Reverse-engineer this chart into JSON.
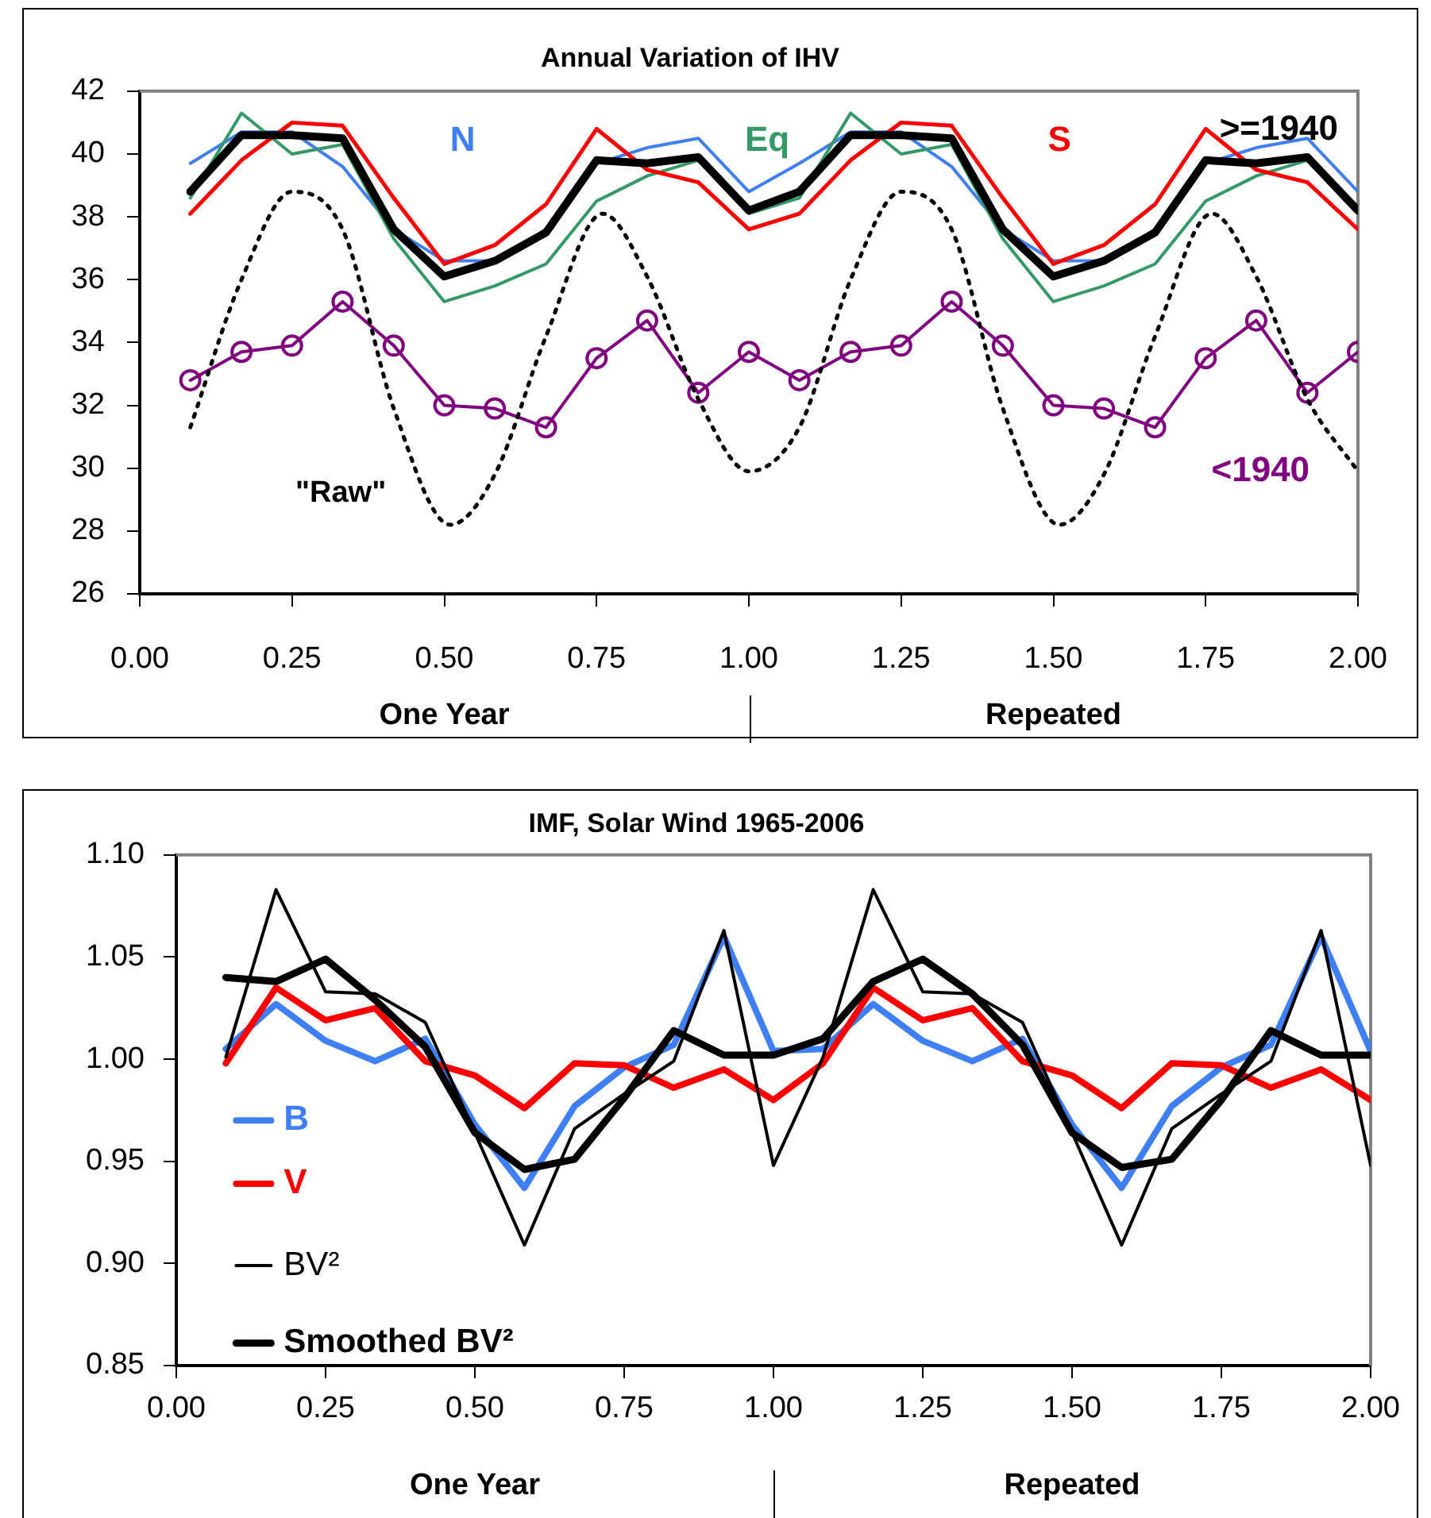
{
  "chart_data": [
    {
      "type": "line",
      "title": "Annual Variation of IHV",
      "legend": false,
      "x": [
        0.083,
        0.167,
        0.25,
        0.333,
        0.417,
        0.5,
        0.583,
        0.667,
        0.75,
        0.833,
        0.917,
        1.0,
        1.083,
        1.167,
        1.25,
        1.333,
        1.417,
        1.5,
        1.583,
        1.667,
        1.75,
        1.833,
        1.917,
        2.0
      ],
      "xlim": [
        0,
        2.0
      ],
      "xticks": [
        {
          "value": 0,
          "label": "0.00"
        },
        {
          "value": 0.25,
          "label": "0.25"
        },
        {
          "value": 0.5,
          "label": "0.50"
        },
        {
          "value": 0.75,
          "label": "0.75"
        },
        {
          "value": 1,
          "label": "1.00"
        },
        {
          "value": 1.25,
          "label": "1.25"
        },
        {
          "value": 1.5,
          "label": "1.50"
        },
        {
          "value": 1.75,
          "label": "1.75"
        },
        {
          "value": 2,
          "label": "2.00"
        }
      ],
      "ylim": [
        26,
        42
      ],
      "yticks": [
        26,
        28,
        30,
        32,
        34,
        36,
        38,
        40,
        42
      ],
      "annotations": [
        "One Year",
        "Repeated"
      ],
      "series": [
        {
          "name": "N",
          "color": "#3f7ff5",
          "values": [
            39.7,
            40.7,
            40.7,
            39.6,
            37.6,
            36.6,
            36.6,
            37.6,
            39.7,
            40.2,
            40.5,
            38.8,
            39.7,
            40.7,
            40.7,
            39.6,
            37.6,
            36.6,
            36.6,
            37.6,
            39.7,
            40.2,
            40.5,
            38.8
          ]
        },
        {
          "name": "Eq",
          "color": "#339966",
          "values": [
            38.6,
            41.3,
            40.0,
            40.3,
            37.3,
            35.3,
            35.8,
            36.5,
            38.5,
            39.3,
            39.8,
            38.1,
            38.6,
            41.3,
            40.0,
            40.3,
            37.3,
            35.3,
            35.8,
            36.5,
            38.5,
            39.3,
            39.8,
            38.1
          ]
        },
        {
          "name": "S",
          "color": "#ff0000",
          "values": [
            38.1,
            39.8,
            41.0,
            40.9,
            38.6,
            36.5,
            37.1,
            38.4,
            40.8,
            39.5,
            39.1,
            37.6,
            38.1,
            39.8,
            41.0,
            40.9,
            38.6,
            36.5,
            37.1,
            38.4,
            40.8,
            39.5,
            39.1,
            37.6
          ]
        },
        {
          "name": ">=1940",
          "color": "#000000",
          "values": [
            38.8,
            40.6,
            40.6,
            40.5,
            37.6,
            36.1,
            36.6,
            37.5,
            39.8,
            39.7,
            39.9,
            38.2,
            38.8,
            40.6,
            40.6,
            40.5,
            37.6,
            36.1,
            36.6,
            37.5,
            39.8,
            39.7,
            39.9,
            38.2
          ]
        },
        {
          "name": "<1940",
          "color": "#800080",
          "marker": "circle",
          "values": [
            32.8,
            33.7,
            33.9,
            35.3,
            33.9,
            32.0,
            31.9,
            31.3,
            33.5,
            34.7,
            32.4,
            33.7,
            32.8,
            33.7,
            33.9,
            35.3,
            33.9,
            32.0,
            31.9,
            31.3,
            33.5,
            34.7,
            32.4,
            33.7
          ]
        },
        {
          "name": "\"Raw\"",
          "color": "#000000",
          "line_style": "dotted",
          "x": [
            0.083,
            0.167,
            0.25,
            0.333,
            0.417,
            0.51,
            0.583,
            0.667,
            0.76,
            0.833,
            0.917,
            1.0,
            1.083,
            1.167,
            1.25,
            1.333,
            1.417,
            1.51,
            1.583,
            1.667,
            1.76,
            1.833,
            1.917,
            2.0
          ],
          "values": [
            31.3,
            36.0,
            38.8,
            37.6,
            31.9,
            28.2,
            29.8,
            34.2,
            38.1,
            36.1,
            32.2,
            29.9,
            31.3,
            36.0,
            38.8,
            37.6,
            31.9,
            28.2,
            29.8,
            34.2,
            38.1,
            36.1,
            32.2,
            29.9
          ]
        }
      ]
    },
    {
      "type": "line",
      "title": "IMF, Solar Wind 1965-2006",
      "legend": "bottom left",
      "x": [
        0.083,
        0.167,
        0.25,
        0.333,
        0.417,
        0.5,
        0.583,
        0.667,
        0.75,
        0.833,
        0.917,
        1.0,
        1.083,
        1.167,
        1.25,
        1.333,
        1.417,
        1.5,
        1.583,
        1.667,
        1.75,
        1.833,
        1.917,
        2.0
      ],
      "xlim": [
        0,
        2.0
      ],
      "xticks": [
        {
          "value": 0,
          "label": "0.00"
        },
        {
          "value": 0.25,
          "label": "0.25"
        },
        {
          "value": 0.5,
          "label": "0.50"
        },
        {
          "value": 0.75,
          "label": "0.75"
        },
        {
          "value": 1,
          "label": "1.00"
        },
        {
          "value": 1.25,
          "label": "1.25"
        },
        {
          "value": 1.5,
          "label": "1.50"
        },
        {
          "value": 1.75,
          "label": "1.75"
        },
        {
          "value": 2,
          "label": "2.00"
        }
      ],
      "ylim": [
        0.85,
        1.1
      ],
      "yticks": [
        {
          "value": 0.85,
          "label": "0.85"
        },
        {
          "value": 0.9,
          "label": "0.90"
        },
        {
          "value": 0.95,
          "label": "0.95"
        },
        {
          "value": 1.0,
          "label": "1.00"
        },
        {
          "value": 1.05,
          "label": "1.05"
        },
        {
          "value": 1.1,
          "label": "1.10"
        }
      ],
      "annotations": [
        "One Year",
        "Repeated"
      ],
      "series": [
        {
          "name": "B",
          "color": "#3f7ff5",
          "values": [
            1.005,
            1.027,
            1.009,
            0.999,
            1.01,
            0.968,
            0.937,
            0.977,
            0.996,
            1.007,
            1.06,
            1.004,
            1.005,
            1.027,
            1.009,
            0.999,
            1.01,
            0.968,
            0.937,
            0.977,
            0.996,
            1.007,
            1.06,
            1.004
          ]
        },
        {
          "name": "V",
          "color": "#ff0000",
          "values": [
            0.998,
            1.035,
            1.019,
            1.025,
            0.999,
            0.992,
            0.976,
            0.998,
            0.997,
            0.986,
            0.995,
            0.98,
            0.998,
            1.035,
            1.019,
            1.025,
            0.999,
            0.992,
            0.976,
            0.998,
            0.997,
            0.986,
            0.995,
            0.98
          ]
        },
        {
          "name": "BV²",
          "color": "#000000",
          "values": [
            1.001,
            1.083,
            1.033,
            1.032,
            1.018,
            0.964,
            0.909,
            0.966,
            0.983,
            0.999,
            1.063,
            0.948,
            1.001,
            1.083,
            1.033,
            1.032,
            1.018,
            0.964,
            0.909,
            0.966,
            0.983,
            0.999,
            1.063,
            0.948
          ]
        },
        {
          "name": "Smoothed BV²",
          "color": "#000000",
          "values": [
            1.04,
            1.038,
            1.049,
            1.029,
            1.006,
            0.964,
            0.946,
            0.951,
            0.981,
            1.014,
            1.002,
            1.002,
            1.01,
            1.038,
            1.049,
            1.032,
            1.007,
            0.964,
            0.947,
            0.951,
            0.98,
            1.014,
            1.002,
            1.002
          ]
        }
      ]
    }
  ]
}
